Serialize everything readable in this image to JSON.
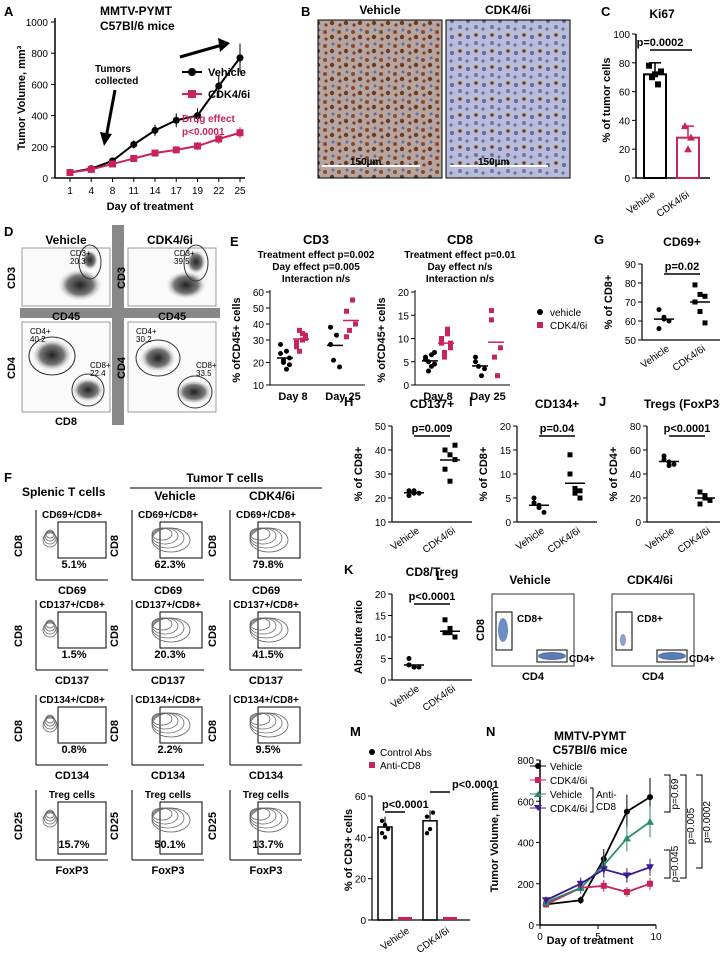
{
  "panels": {
    "A": {
      "letter": "A",
      "title1": "MMTV-PYMT",
      "title2": "C57Bl/6 mice",
      "ylabel": "Tumor Volume, mm³",
      "xlabel": "Day of treatment",
      "annot_collected1": "Tumors",
      "annot_collected2": "collected",
      "drug_effect1": "Drug effect",
      "drug_effect2": "p<0.0001",
      "legend": [
        "Vehicle",
        "CDK4/6i"
      ]
    },
    "B": {
      "letter": "B",
      "left_label": "Vehicle",
      "right_label": "CDK4/6i",
      "scale_left": "150µm",
      "scale_right": "150µm"
    },
    "C": {
      "letter": "C",
      "title": "Ki67",
      "ylabel": "% of tumor cells",
      "pval": "p=0.0002",
      "cats": [
        "Vehicle",
        "CDK4/6i"
      ]
    },
    "D": {
      "letter": "D",
      "vehicle": "Vehicle",
      "cdk": "CDK4/6i",
      "cd3": "CD3",
      "cd45": "CD45",
      "cd4": "CD4",
      "cd8": "CD8",
      "gates": {
        "veh_cd3": "CD3+",
        "veh_cd3_val": "20.3",
        "cdk_cd3": "CD3+",
        "cdk_cd3_val": "39.5",
        "veh_cd4": "CD4+",
        "veh_cd4_val": "40.2",
        "veh_cd8": "CD8+",
        "veh_cd8_val": "22.4",
        "cdk_cd4": "CD4+",
        "cdk_cd4_val": "30.2",
        "cdk_cd8": "CD8+",
        "cdk_cd8_val": "33.5"
      }
    },
    "E": {
      "letter": "E",
      "cd3_title": "CD3",
      "cd3_l1": "Treatment effect p=0.002",
      "cd3_l2": "Day effect p=0.005",
      "cd3_l3": "Interaction n/s",
      "cd8_title": "CD8",
      "cd8_l1": "Treatment effect p=0.01",
      "cd8_l2": "Day effect n/s",
      "cd8_l3": "Interaction n/s",
      "ylabel": "% ofCD45+ cells",
      "legend": [
        "vehicle",
        "CDK4/6i"
      ],
      "cats": [
        "Day 8",
        "Day 25"
      ]
    },
    "G": {
      "letter": "G",
      "title": "CD69+",
      "ylabel": "% of CD8+",
      "pval": "p=0.02",
      "cats": [
        "Vehicle",
        "CDK4/6i"
      ]
    },
    "H": {
      "letter": "H",
      "title": "CD137+",
      "ylabel": "% of CD8+",
      "pval": "p=0.009",
      "cats": [
        "Vehicle",
        "CDK4/6i"
      ]
    },
    "I": {
      "letter": "I",
      "title": "CD134+",
      "ylabel": "% of CD8+",
      "pval": "p=0.04",
      "cats": [
        "Vehicle",
        "CDK4/6i"
      ]
    },
    "J": {
      "letter": "J",
      "title": "Tregs (FoxP3+)",
      "ylabel": "% of CD4+",
      "pval": "p<0.0001",
      "cats": [
        "Vehicle",
        "CDK4/6i"
      ]
    },
    "K": {
      "letter": "K",
      "title": "CD8/Treg",
      "ylabel": "Absolute ratio",
      "pval": "p<0.0001",
      "cats": [
        "Vehicle",
        "CDK4/6i"
      ]
    },
    "L": {
      "letter": "L",
      "vehicle": "Vehicle",
      "cdk": "CDK4/6i",
      "cd8": "CD8",
      "cd4": "CD4",
      "cd8p": "CD8+",
      "cd4p": "CD4+"
    },
    "F": {
      "letter": "F",
      "splenic": "Splenic T cells",
      "tumor": "Tumor T cells",
      "vehicle": "Vehicle",
      "cdk": "CDK4/6i",
      "rows": [
        {
          "gate": "CD69+/CD8+",
          "y": "CD8",
          "x": "CD69",
          "vals": [
            "5.1%",
            "62.3%",
            "79.8%"
          ]
        },
        {
          "gate": "CD137+/CD8+",
          "y": "CD8",
          "x": "CD137",
          "vals": [
            "1.5%",
            "20.3%",
            "41.5%"
          ]
        },
        {
          "gate": "CD134+/CD8+",
          "y": "CD8",
          "x": "CD134",
          "vals": [
            "0.8%",
            "2.2%",
            "9.5%"
          ]
        },
        {
          "gate": "Treg cells",
          "y": "CD25",
          "x": "FoxP3",
          "vals": [
            "15.7%",
            "50.1%",
            "13.7%"
          ]
        }
      ]
    },
    "M": {
      "letter": "M",
      "ylabel": "% of CD3+ cells",
      "legend": [
        "Control Abs",
        "Anti-CD8"
      ],
      "p1": "p<0.0001",
      "p2": "p<0.0001",
      "cats": [
        "Vehicle",
        "CDK4/6i"
      ]
    },
    "N": {
      "letter": "N",
      "title1": "MMTV-PYMT",
      "title2": "C57Bl/6 mice",
      "ylabel": "Tumor Volume, mm³",
      "xlabel": "Day of treatment",
      "legend": [
        "Vehicle",
        "CDK4/6i",
        "Vehicle",
        "CDK4/6i"
      ],
      "anti1": "Anti-",
      "anti2": "CD8",
      "pvals": [
        "p=0.69",
        "p=0.045",
        "p=0.005",
        "p=0.0002"
      ]
    }
  },
  "colors": {
    "vehicle": "#000000",
    "cdk": "#c8235a",
    "anti_veh": "#2e8b6e",
    "anti_cdk": "#3a1a8c"
  },
  "chart_data": [
    {
      "panel": "A",
      "type": "line",
      "x": [
        1,
        4,
        8,
        11,
        14,
        17,
        19,
        22,
        25
      ],
      "ylim": [
        0,
        1000
      ],
      "series": [
        {
          "name": "Vehicle",
          "values": [
            35,
            60,
            110,
            215,
            305,
            370,
            400,
            590,
            770
          ]
        },
        {
          "name": "CDK4/6i",
          "values": [
            35,
            55,
            90,
            125,
            160,
            180,
            205,
            250,
            290
          ]
        }
      ]
    },
    {
      "panel": "C",
      "type": "bar",
      "categories": [
        "Vehicle",
        "CDK4/6i"
      ],
      "values": [
        72,
        28
      ],
      "ylim": [
        0,
        100
      ],
      "points": [
        [
          78,
          70,
          72,
          65,
          74
        ],
        [
          36,
          20,
          28
        ]
      ]
    },
    {
      "panel": "E-CD3",
      "type": "scatter",
      "categories": [
        "Day 8",
        "Day 25"
      ],
      "series": [
        {
          "name": "vehicle",
          "points": [
            [
              24,
              20,
              17,
              22,
              28,
              21,
              25,
              19
            ],
            [
              28,
              21,
              33,
              18,
              38
            ]
          ]
        },
        {
          "name": "CDK4/6i",
          "points": [
            [
              29,
              25,
              34,
              31,
              27,
              36,
              30,
              33
            ],
            [
              48,
              36,
              55,
              40,
              32
            ]
          ]
        }
      ]
    },
    {
      "panel": "E-CD8",
      "type": "scatter",
      "categories": [
        "Day 8",
        "Day 25"
      ],
      "series": [
        {
          "name": "vehicle",
          "points": [
            [
              6,
              5,
              4,
              7,
              5.5,
              3,
              6.5,
              4.5
            ],
            [
              5,
              4,
              2,
              3.5,
              6
            ]
          ]
        },
        {
          "name": "CDK4/6i",
          "points": [
            [
              9,
              7,
              11,
              8,
              10,
              6,
              12,
              9
            ],
            [
              14,
              6,
              2,
              8,
              16
            ]
          ]
        }
      ]
    },
    {
      "panel": "G",
      "type": "scatter",
      "categories": [
        "Vehicle",
        "CDK4/6i"
      ],
      "ylim": [
        50,
        90
      ],
      "points": [
        [
          66,
          61,
          60,
          56,
          62
        ],
        [
          79,
          74,
          73,
          70,
          65,
          59
        ]
      ]
    },
    {
      "panel": "H",
      "type": "scatter",
      "categories": [
        "Vehicle",
        "CDK4/6i"
      ],
      "ylim": [
        10,
        50
      ],
      "points": [
        [
          23,
          22,
          22,
          21,
          23
        ],
        [
          40,
          38,
          36,
          32,
          27,
          42
        ]
      ]
    },
    {
      "panel": "I",
      "type": "scatter",
      "categories": [
        "Vehicle",
        "CDK4/6i"
      ],
      "ylim": [
        0,
        20
      ],
      "points": [
        [
          5,
          3,
          2,
          4,
          3.5
        ],
        [
          14,
          6,
          5,
          10,
          7,
          6.5
        ]
      ]
    },
    {
      "panel": "J",
      "type": "scatter",
      "categories": [
        "Vehicle",
        "CDK4/6i"
      ],
      "ylim": [
        0,
        80
      ],
      "points": [
        [
          55,
          50,
          48,
          52,
          47
        ],
        [
          25,
          20,
          18,
          15,
          22
        ]
      ]
    },
    {
      "panel": "K",
      "type": "scatter",
      "categories": [
        "Vehicle",
        "CDK4/6i"
      ],
      "ylim": [
        0,
        20
      ],
      "points": [
        [
          5,
          3,
          3,
          3.5,
          3
        ],
        [
          14,
          12,
          10,
          11,
          11,
          10
        ]
      ]
    },
    {
      "panel": "M",
      "type": "bar",
      "categories": [
        "Vehicle",
        "CDK4/6i"
      ],
      "ylim": [
        0,
        60
      ],
      "series": [
        {
          "name": "Control Abs",
          "values": [
            45,
            48
          ],
          "points": [
            [
              42,
              46,
              44,
              48,
              40
            ],
            [
              50,
              44,
              52,
              42
            ]
          ]
        },
        {
          "name": "Anti-CD8",
          "values": [
            0.5,
            0.5
          ]
        }
      ]
    },
    {
      "panel": "N",
      "type": "line",
      "x": [
        1,
        4,
        6,
        8,
        10
      ],
      "ylim": [
        0,
        800
      ],
      "series": [
        {
          "name": "Vehicle",
          "values": [
            100,
            120,
            320,
            550,
            620
          ]
        },
        {
          "name": "CDK4/6i",
          "values": [
            100,
            180,
            190,
            160,
            200
          ]
        },
        {
          "name": "Vehicle Anti-CD8",
          "values": [
            110,
            180,
            290,
            420,
            500
          ]
        },
        {
          "name": "CDK4/6i Anti-CD8",
          "values": [
            120,
            200,
            270,
            240,
            280
          ]
        }
      ]
    }
  ]
}
